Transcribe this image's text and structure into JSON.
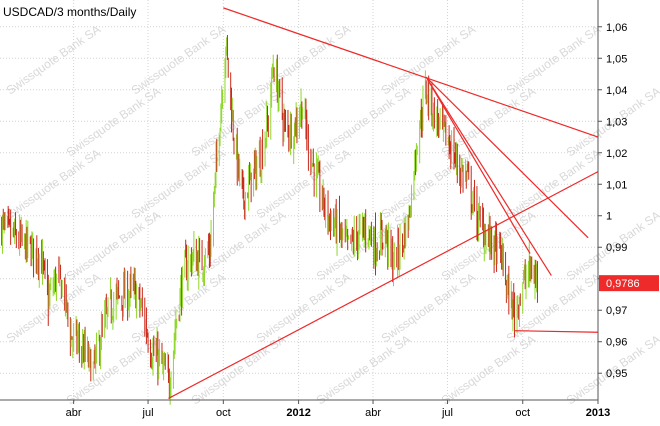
{
  "chart_data": {
    "type": "candlestick",
    "title": "USDCAD/3 months/Daily",
    "watermark": "Swissquote Bank SA",
    "last_price_label": "0,9786",
    "x_ticks": [
      {
        "label": "abr",
        "date": "2011-04-01",
        "bold": false
      },
      {
        "label": "jul",
        "date": "2011-07-01",
        "bold": false
      },
      {
        "label": "oct",
        "date": "2011-10-01",
        "bold": false
      },
      {
        "label": "2012",
        "date": "2012-01-01",
        "bold": true
      },
      {
        "label": "abr",
        "date": "2012-04-01",
        "bold": false
      },
      {
        "label": "jul",
        "date": "2012-07-01",
        "bold": false
      },
      {
        "label": "oct",
        "date": "2012-10-01",
        "bold": false
      },
      {
        "label": "2013",
        "date": "2013-01-01",
        "bold": true
      }
    ],
    "y_ticks": [
      {
        "value": 0.95,
        "label": "0,95"
      },
      {
        "value": 0.96,
        "label": "0,96"
      },
      {
        "value": 0.97,
        "label": "0,97"
      },
      {
        "value": 0.98,
        "label": ""
      },
      {
        "value": 0.99,
        "label": "0,99"
      },
      {
        "value": 1.0,
        "label": "1"
      },
      {
        "value": 1.01,
        "label": "1,01"
      },
      {
        "value": 1.02,
        "label": "1,02"
      },
      {
        "value": 1.03,
        "label": "1,03"
      },
      {
        "value": 1.04,
        "label": "1,04"
      },
      {
        "value": 1.05,
        "label": "1,05"
      },
      {
        "value": 1.06,
        "label": "1,06"
      }
    ],
    "ylim": [
      0.9415,
      1.0685
    ],
    "xlim": [
      "2011-01-01",
      "2013-01-01"
    ],
    "last_price": 0.9786,
    "price_path": [
      [
        "2011-01-01",
        0.997
      ],
      [
        "2011-01-20",
        0.993
      ],
      [
        "2011-02-05",
        0.99
      ],
      [
        "2011-02-20",
        0.987
      ],
      [
        "2011-03-01",
        0.973
      ],
      [
        "2011-03-10",
        0.98
      ],
      [
        "2011-03-20",
        0.977
      ],
      [
        "2011-03-28",
        0.962
      ],
      [
        "2011-04-05",
        0.96
      ],
      [
        "2011-04-15",
        0.956
      ],
      [
        "2011-04-25",
        0.951
      ],
      [
        "2011-05-05",
        0.962
      ],
      [
        "2011-05-15",
        0.971
      ],
      [
        "2011-05-25",
        0.974
      ],
      [
        "2011-06-05",
        0.975
      ],
      [
        "2011-06-15",
        0.976
      ],
      [
        "2011-06-25",
        0.969
      ],
      [
        "2011-07-05",
        0.957
      ],
      [
        "2011-07-15",
        0.954
      ],
      [
        "2011-07-27",
        0.947
      ],
      [
        "2011-08-05",
        0.968
      ],
      [
        "2011-08-15",
        0.983
      ],
      [
        "2011-08-25",
        0.987
      ],
      [
        "2011-09-05",
        0.985
      ],
      [
        "2011-09-15",
        0.99
      ],
      [
        "2011-09-25",
        1.025
      ],
      [
        "2011-10-04",
        1.055
      ],
      [
        "2011-10-15",
        1.022
      ],
      [
        "2011-10-25",
        1.005
      ],
      [
        "2011-11-05",
        1.012
      ],
      [
        "2011-11-15",
        1.018
      ],
      [
        "2011-11-25",
        1.03
      ],
      [
        "2011-12-01",
        1.048
      ],
      [
        "2011-12-15",
        1.028
      ],
      [
        "2011-12-25",
        1.027
      ],
      [
        "2012-01-05",
        1.035
      ],
      [
        "2012-01-15",
        1.02
      ],
      [
        "2012-01-25",
        1.01
      ],
      [
        "2012-02-05",
        1.0
      ],
      [
        "2012-02-15",
        0.997
      ],
      [
        "2012-03-01",
        0.99
      ],
      [
        "2012-03-15",
        0.994
      ],
      [
        "2012-03-25",
        0.996
      ],
      [
        "2012-04-05",
        0.99
      ],
      [
        "2012-04-15",
        0.995
      ],
      [
        "2012-04-25",
        0.985
      ],
      [
        "2012-05-05",
        0.99
      ],
      [
        "2012-05-15",
        1.0
      ],
      [
        "2012-05-25",
        1.025
      ],
      [
        "2012-06-05",
        1.04
      ],
      [
        "2012-06-15",
        1.032
      ],
      [
        "2012-06-25",
        1.027
      ],
      [
        "2012-07-05",
        1.022
      ],
      [
        "2012-07-15",
        1.015
      ],
      [
        "2012-07-25",
        1.012
      ],
      [
        "2012-08-05",
        1.0
      ],
      [
        "2012-08-15",
        0.995
      ],
      [
        "2012-08-25",
        0.991
      ],
      [
        "2012-09-05",
        0.987
      ],
      [
        "2012-09-15",
        0.973
      ],
      [
        "2012-09-21",
        0.969
      ],
      [
        "2012-10-01",
        0.978
      ],
      [
        "2012-10-10",
        0.983
      ],
      [
        "2012-10-19",
        0.979
      ]
    ],
    "trend_lines": [
      {
        "name": "resistance-main",
        "start": [
          "2011-10-01",
          1.066
        ],
        "end": [
          "2013-01-01",
          1.025
        ]
      },
      {
        "name": "support-main",
        "start": [
          "2011-07-26",
          0.942
        ],
        "end": [
          "2013-01-01",
          1.014
        ]
      },
      {
        "name": "fan-1",
        "start": [
          "2012-06-05",
          1.044
        ],
        "end": [
          "2012-12-20",
          0.993
        ]
      },
      {
        "name": "fan-2",
        "start": [
          "2012-06-05",
          1.044
        ],
        "end": [
          "2012-11-05",
          0.981
        ]
      },
      {
        "name": "fan-3",
        "start": [
          "2012-06-05",
          1.044
        ],
        "end": [
          "2012-10-10",
          0.988
        ]
      },
      {
        "name": "horizontal-low",
        "start": [
          "2012-09-21",
          0.9635
        ],
        "end": [
          "2013-01-01",
          0.963
        ]
      }
    ],
    "colors": {
      "bull": "#8fd62a",
      "bear": "#c8281a",
      "trend": "#ee2a2a",
      "grid": "#d3d3d3",
      "axis_line": "#555555",
      "text": "#000000",
      "label_bg": "#ee2a2a",
      "label_text": "#ffffff",
      "watermark": "#d9d9d9"
    },
    "grid": true
  }
}
